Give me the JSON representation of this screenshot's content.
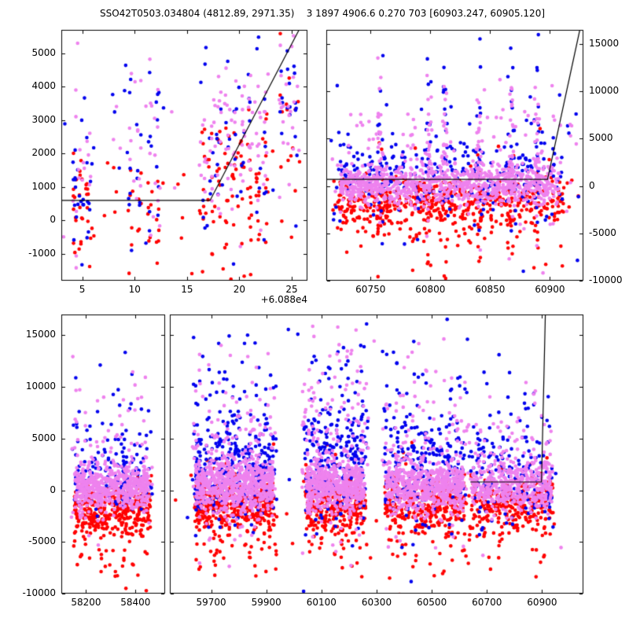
{
  "title": "SSO42T0503.034804 (4812.89, 2971.35)    3 1897 4906.6 0.270 703 [60903.247, 60905.120]",
  "colors": {
    "red": "#ff0000",
    "blue": "#0000ee",
    "violet": "#ee82ee",
    "line": "#000000",
    "axes": "#000000",
    "background": "#ffffff"
  },
  "chart_data": [
    {
      "id": "top-left",
      "type": "scatter",
      "xlim": [
        3.0,
        26.5
      ],
      "ylim": [
        -1800,
        5700
      ],
      "xticks": [
        5,
        10,
        15,
        20,
        25
      ],
      "yticks": [
        -1000,
        0,
        1000,
        2000,
        3000,
        4000,
        5000
      ],
      "ylabel_side": "left",
      "x_offset_label": "+6.088e4",
      "grid": false,
      "fit_line": [
        [
          3.0,
          600
        ],
        [
          17.2,
          600
        ],
        [
          25.7,
          5700
        ]
      ],
      "clusters": [
        {
          "c": "red",
          "cols": [
            4.3,
            4.9,
            5.6
          ],
          "np": 11,
          "xs": 0.14,
          "y": 400,
          "s": 1000
        },
        {
          "c": "blue",
          "cols": [
            4.3,
            4.9,
            5.6
          ],
          "np": 9,
          "xs": 0.14,
          "y": 900,
          "s": 1200
        },
        {
          "c": "violet",
          "cols": [
            4.3,
            4.9,
            5.6
          ],
          "np": 4,
          "xs": 0.14,
          "y": 2400,
          "s": 1000
        },
        {
          "c": "red",
          "cols": [
            9.6,
            10.4,
            11.4,
            12.2
          ],
          "np": 6,
          "xs": 0.14,
          "y": 300,
          "s": 1000
        },
        {
          "c": "blue",
          "cols": [
            9.6,
            10.4,
            11.4,
            12.2
          ],
          "np": 7,
          "xs": 0.14,
          "y": 1800,
          "s": 1500
        },
        {
          "c": "violet",
          "cols": [
            9.6,
            10.4,
            11.4,
            12.2
          ],
          "np": 5,
          "xs": 0.14,
          "y": 2400,
          "s": 1200
        },
        {
          "c": "red",
          "cols": [
            16.6,
            17.3,
            18.0,
            18.8,
            19.5,
            20.2,
            21.0,
            21.8,
            22.5
          ],
          "np": 10,
          "xs": 0.15,
          "y": 1100,
          "s": 900
        },
        {
          "c": "blue",
          "cols": [
            16.6,
            17.3,
            18.0,
            18.8,
            19.5,
            20.2,
            21.0,
            21.8,
            22.5
          ],
          "np": 5,
          "xs": 0.15,
          "y": 2700,
          "s": 1400
        },
        {
          "c": "violet",
          "cols": [
            16.6,
            17.3,
            18.0,
            18.8,
            19.5,
            20.2,
            21.0,
            21.8,
            22.5
          ],
          "np": 9,
          "xs": 0.15,
          "y": 2400,
          "s": 1100
        },
        {
          "c": "red",
          "cols": [
            24.0,
            24.7,
            25.3
          ],
          "np": 5,
          "xs": 0.14,
          "y": 3000,
          "s": 1400
        },
        {
          "c": "blue",
          "cols": [
            24.0,
            24.7,
            25.3
          ],
          "np": 6,
          "xs": 0.14,
          "y": 3900,
          "s": 1100
        },
        {
          "c": "violet",
          "cols": [
            24.0,
            24.7,
            25.3
          ],
          "np": 7,
          "xs": 0.14,
          "y": 3700,
          "s": 1200
        },
        {
          "c": "red",
          "n": 25,
          "x": [
            3.2,
            26.3
          ],
          "y": 0,
          "s": 1600
        },
        {
          "c": "blue",
          "n": 20,
          "x": [
            3.2,
            26.3
          ],
          "y": 2000,
          "s": 1800
        },
        {
          "c": "violet",
          "n": 30,
          "x": [
            3.2,
            26.3
          ],
          "y": 2500,
          "s": 1600
        },
        {
          "c": "red",
          "n": 5,
          "x": [
            11.8,
            21.5
          ],
          "y": -1550,
          "s": 250
        },
        {
          "c": "violet",
          "n": 3,
          "x": [
            4.2,
            6.5
          ],
          "y": -1300,
          "s": 300
        }
      ]
    },
    {
      "id": "top-right",
      "type": "scatter",
      "xlim": [
        60713,
        60928
      ],
      "ylim": [
        -10000,
        16500
      ],
      "xticks": [
        60750,
        60800,
        60850,
        60900
      ],
      "yticks": [
        -10000,
        -5000,
        0,
        5000,
        10000,
        15000
      ],
      "ylabel_side": "right",
      "grid": false,
      "fit_line": [
        [
          60713,
          700
        ],
        [
          60898,
          700
        ],
        [
          60925,
          16500
        ]
      ],
      "clusters": [
        {
          "c": "red",
          "n": 480,
          "x": [
            60722,
            60912
          ],
          "y": -1800,
          "s": 1300
        },
        {
          "c": "red",
          "n": 90,
          "x": [
            60716,
            60924
          ],
          "y": -3000,
          "s": 3000
        },
        {
          "c": "red",
          "n": 6,
          "x": [
            60730,
            60900
          ],
          "y": -5500,
          "s": 1200
        },
        {
          "c": "blue",
          "n": 230,
          "x": [
            60720,
            60910
          ],
          "y": 1300,
          "s": 1900
        },
        {
          "c": "blue",
          "n": 70,
          "x": [
            60716,
            60924
          ],
          "y": 2500,
          "s": 4200
        },
        {
          "c": "violet",
          "n": 850,
          "x": [
            60724,
            60908
          ],
          "y": 200,
          "s": 1100
        },
        {
          "c": "violet",
          "n": 110,
          "x": [
            60715,
            60925
          ],
          "y": 2800,
          "s": 3600
        },
        {
          "c": "violet",
          "n": 3,
          "x": [
            60850,
            60905
          ],
          "y": -7500,
          "s": 1500
        },
        {
          "c": "violet",
          "cols": [
            60758,
            60799,
            60812,
            60841,
            60868,
            60889
          ],
          "np": 22,
          "xs": 1.2,
          "y": 4500,
          "s": 4000
        },
        {
          "c": "blue",
          "cols": [
            60758,
            60799,
            60812,
            60841,
            60868,
            60889
          ],
          "np": 13,
          "xs": 1.2,
          "y": 5000,
          "s": 4500
        },
        {
          "c": "red",
          "cols": [
            60758,
            60799,
            60812,
            60841,
            60868,
            60889
          ],
          "np": 10,
          "xs": 1.2,
          "y": -2800,
          "s": 3200
        }
      ]
    },
    {
      "id": "bottom-left-segment",
      "type": "scatter",
      "xlim": [
        58100,
        58520
      ],
      "ylim": [
        -10000,
        17000
      ],
      "xticks": [
        58200,
        58400
      ],
      "yticks": [
        -10000,
        -5000,
        0,
        5000,
        10000,
        15000
      ],
      "ylabel_side": "left",
      "grid": false,
      "fit_line": null,
      "clusters": [
        {
          "c": "red",
          "n": 330,
          "x": [
            58150,
            58460
          ],
          "y": -1700,
          "s": 1300
        },
        {
          "c": "red",
          "n": 60,
          "x": [
            58140,
            58470
          ],
          "y": -3800,
          "s": 2400
        },
        {
          "c": "red",
          "n": 12,
          "x": [
            58160,
            58450
          ],
          "y": -6500,
          "s": 1500
        },
        {
          "c": "blue",
          "n": 110,
          "x": [
            58150,
            58460
          ],
          "y": 1500,
          "s": 1700
        },
        {
          "c": "blue",
          "n": 55,
          "x": [
            58140,
            58470
          ],
          "y": 4200,
          "s": 3800
        },
        {
          "c": "violet",
          "n": 550,
          "x": [
            58155,
            58455
          ],
          "y": 300,
          "s": 1100
        },
        {
          "c": "violet",
          "n": 80,
          "x": [
            58140,
            58470
          ],
          "y": 3600,
          "s": 3400
        }
      ]
    },
    {
      "id": "bottom-right-segment",
      "type": "scatter",
      "xlim": [
        59550,
        61050
      ],
      "ylim": [
        -10000,
        17000
      ],
      "xticks": [
        59700,
        59900,
        60100,
        60300,
        60500,
        60700,
        60900
      ],
      "yticks": [
        -10000,
        -5000,
        0,
        5000,
        10000,
        15000
      ],
      "ylabel_side": "none",
      "grid": false,
      "fit_line": [
        [
          60640,
          800
        ],
        [
          60898,
          800
        ],
        [
          60912,
          17000
        ]
      ],
      "clusters": [
        {
          "c": "red",
          "n": 380,
          "x": [
            59640,
            59930
          ],
          "y": -1300,
          "s": 1400
        },
        {
          "c": "red",
          "n": 70,
          "x": [
            59630,
            59940
          ],
          "y": -3200,
          "s": 2800
        },
        {
          "c": "blue",
          "n": 240,
          "x": [
            59640,
            59930
          ],
          "y": 2000,
          "s": 2400
        },
        {
          "c": "blue",
          "n": 110,
          "x": [
            59630,
            59940
          ],
          "y": 5200,
          "s": 4300
        },
        {
          "c": "violet",
          "n": 650,
          "x": [
            59645,
            59925
          ],
          "y": 400,
          "s": 1300
        },
        {
          "c": "violet",
          "n": 140,
          "x": [
            59630,
            59940
          ],
          "y": 4200,
          "s": 3900
        },
        {
          "c": "red",
          "n": 280,
          "x": [
            60040,
            60260
          ],
          "y": -1300,
          "s": 1300
        },
        {
          "c": "red",
          "n": 60,
          "x": [
            60030,
            60270
          ],
          "y": -2800,
          "s": 3000
        },
        {
          "c": "blue",
          "n": 170,
          "x": [
            60040,
            60260
          ],
          "y": 2600,
          "s": 2700
        },
        {
          "c": "blue",
          "n": 95,
          "x": [
            60030,
            60270
          ],
          "y": 6000,
          "s": 4400
        },
        {
          "c": "violet",
          "n": 500,
          "x": [
            60045,
            60255
          ],
          "y": 400,
          "s": 1200
        },
        {
          "c": "violet",
          "n": 150,
          "x": [
            60030,
            60270
          ],
          "y": 4800,
          "s": 4200
        },
        {
          "c": "red",
          "n": 320,
          "x": [
            60330,
            60620
          ],
          "y": -1400,
          "s": 1300
        },
        {
          "c": "red",
          "n": 55,
          "x": [
            60320,
            60630
          ],
          "y": -3200,
          "s": 2800
        },
        {
          "c": "blue",
          "n": 150,
          "x": [
            60330,
            60620
          ],
          "y": 2000,
          "s": 2500
        },
        {
          "c": "blue",
          "n": 85,
          "x": [
            60320,
            60630
          ],
          "y": 5200,
          "s": 4300
        },
        {
          "c": "violet",
          "n": 560,
          "x": [
            60335,
            60615
          ],
          "y": 300,
          "s": 1200
        },
        {
          "c": "violet",
          "n": 120,
          "x": [
            60320,
            60630
          ],
          "y": 4200,
          "s": 3800
        },
        {
          "c": "red",
          "n": 260,
          "x": [
            60640,
            60940
          ],
          "y": -1200,
          "s": 1300
        },
        {
          "c": "red",
          "n": 50,
          "x": [
            60630,
            60945
          ],
          "y": -2600,
          "s": 2600
        },
        {
          "c": "blue",
          "n": 110,
          "x": [
            60640,
            60940
          ],
          "y": 1600,
          "s": 2200
        },
        {
          "c": "blue",
          "n": 65,
          "x": [
            60630,
            60945
          ],
          "y": 4200,
          "s": 3800
        },
        {
          "c": "violet",
          "n": 420,
          "x": [
            60645,
            60935
          ],
          "y": 500,
          "s": 1100
        },
        {
          "c": "violet",
          "n": 85,
          "x": [
            60630,
            60945
          ],
          "y": 3600,
          "s": 3300
        },
        {
          "c": "red",
          "n": 25,
          "x": [
            59650,
            60930
          ],
          "y": -6000,
          "s": 1600
        },
        {
          "c": "violet",
          "n": 10,
          "x": [
            59650,
            60930
          ],
          "y": -5500,
          "s": 1800
        },
        {
          "c": "red",
          "n": 18,
          "x": [
            59560,
            61040
          ],
          "y": -2000,
          "s": 3500
        },
        {
          "c": "violet",
          "n": 18,
          "x": [
            59560,
            61040
          ],
          "y": 1000,
          "s": 3800
        },
        {
          "c": "blue",
          "n": 10,
          "x": [
            59560,
            61040
          ],
          "y": 1500,
          "s": 4000
        },
        {
          "c": "blue",
          "n": 8,
          "x": [
            59700,
            60600
          ],
          "y": 14500,
          "s": 1500
        },
        {
          "c": "violet",
          "n": 8,
          "x": [
            60050,
            60500
          ],
          "y": 14000,
          "s": 1800
        }
      ]
    }
  ]
}
